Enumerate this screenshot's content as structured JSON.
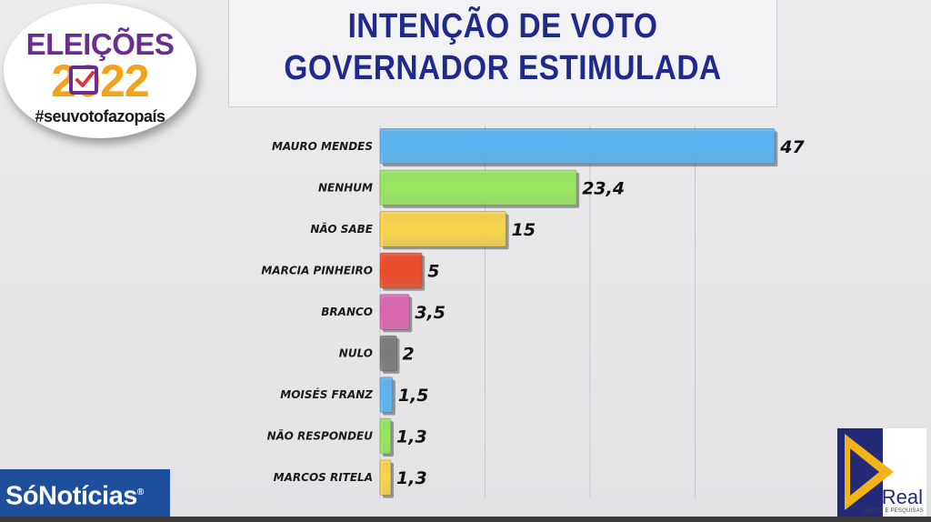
{
  "header": {
    "title_line1": "INTENÇÃO DE VOTO",
    "title_line2": "GOVERNADOR ESTIMULADA"
  },
  "badge": {
    "word": "ELEIÇÕES",
    "year": "2022",
    "tagline": "#seuvotofazopaís",
    "colors": {
      "purple": "#6a2f8e",
      "orange": "#f2a21b"
    }
  },
  "brands": {
    "left_logo": "SóNotícias",
    "left_logo_mark": "®",
    "right_logo_name": "Real",
    "right_logo_sub": "DADOS E PESQUISAS"
  },
  "chart_data": {
    "type": "bar",
    "orientation": "horizontal",
    "title": "INTENÇÃO DE VOTO GOVERNADOR ESTIMULADA",
    "categories": [
      "MAURO MENDES",
      "NENHUM",
      "NÃO SABE",
      "MARCIA PINHEIRO",
      "BRANCO",
      "NULO",
      "MOISÉS FRANZ",
      "NÃO RESPONDEU",
      "MARCOS RITELA"
    ],
    "values": [
      47,
      23.4,
      15,
      5,
      3.5,
      2,
      1.5,
      1.3,
      1.3
    ],
    "value_labels": [
      "47",
      "23,4",
      "15",
      "5",
      "3,5",
      "2",
      "1,5",
      "1,3",
      "1,3"
    ],
    "colors": [
      "#5ab4f2",
      "#96e85e",
      "#f8d54a",
      "#ee4a28",
      "#dc64b0",
      "#7a7a7a",
      "#5ab4f2",
      "#96e85e",
      "#f8d54a"
    ],
    "xlim": [
      0,
      50
    ],
    "grid": true,
    "legend": "none"
  }
}
